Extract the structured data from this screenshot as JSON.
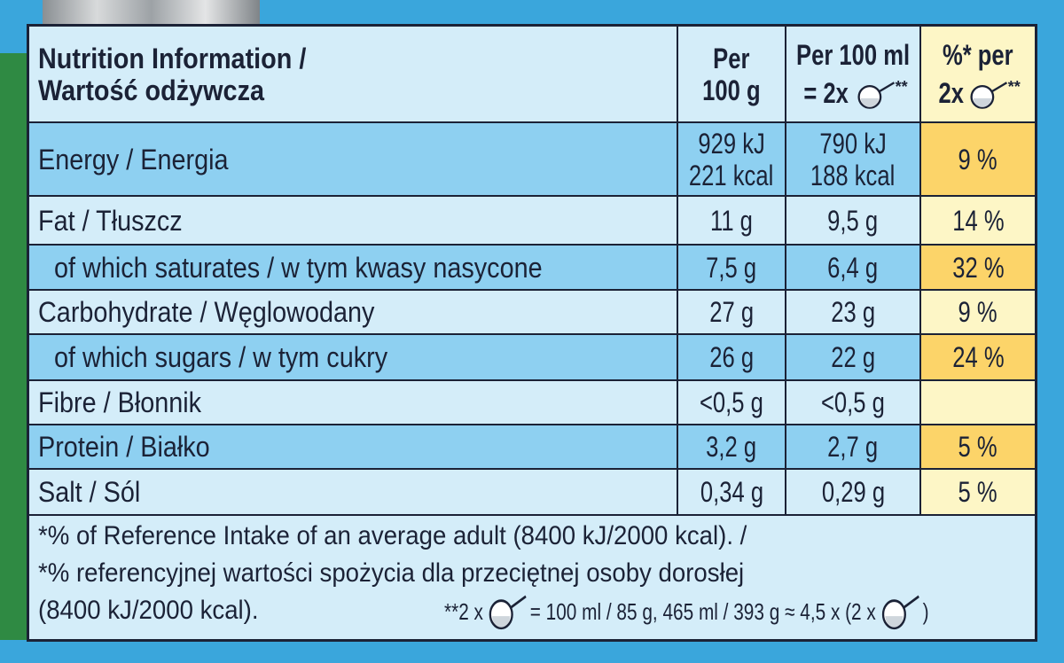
{
  "header": {
    "label": [
      "Nutrition Information /",
      "Wartość odżywcza"
    ],
    "per100g": [
      "Per",
      "100 g"
    ],
    "per100ml": [
      "Per 100 ml",
      "= 2x",
      "**"
    ],
    "ri": [
      "%* per",
      "2x",
      "**"
    ]
  },
  "rows": [
    {
      "label": "Energy / Energia",
      "per100g": [
        "929 kJ",
        "221 kcal"
      ],
      "per100ml": [
        "790 kJ",
        "188 kcal"
      ],
      "ri": "9 %"
    },
    {
      "label": "Fat / Tłuszcz",
      "per100g": [
        "11 g"
      ],
      "per100ml": [
        "9,5 g"
      ],
      "ri": "14 %"
    },
    {
      "label": "of which saturates / w tym kwasy nasycone",
      "per100g": [
        "7,5 g"
      ],
      "per100ml": [
        "6,4 g"
      ],
      "ri": "32 %"
    },
    {
      "label": "Carbohydrate / Węglowodany",
      "per100g": [
        "27 g"
      ],
      "per100ml": [
        "23 g"
      ],
      "ri": "9 %"
    },
    {
      "label": "of which sugars / w tym cukry",
      "per100g": [
        "26 g"
      ],
      "per100ml": [
        "22 g"
      ],
      "ri": "24 %"
    },
    {
      "label": "Fibre / Błonnik",
      "per100g": [
        "<0,5 g"
      ],
      "per100ml": [
        "<0,5 g"
      ]
    },
    {
      "label": "Protein / Białko",
      "per100g": [
        "3,2 g"
      ],
      "per100ml": [
        "2,7 g"
      ],
      "ri": "5 %"
    },
    {
      "label": "Salt / Sól",
      "per100g": [
        "0,34 g"
      ],
      "per100ml": [
        "0,29 g"
      ],
      "ri": "5 %"
    }
  ],
  "footer": {
    "lines": [
      "*% of Reference Intake of an average adult (8400 kJ/2000 kcal). /",
      "*% referencyjnej wartości spożycia dla przeciętnej osoby dorosłej",
      "(8400 kJ/2000 kcal)."
    ],
    "note": [
      "**2 x",
      "= 100 ml / 85 g, 465 ml / 393 g ≈ 4,5 x (2 x",
      ")"
    ]
  }
}
